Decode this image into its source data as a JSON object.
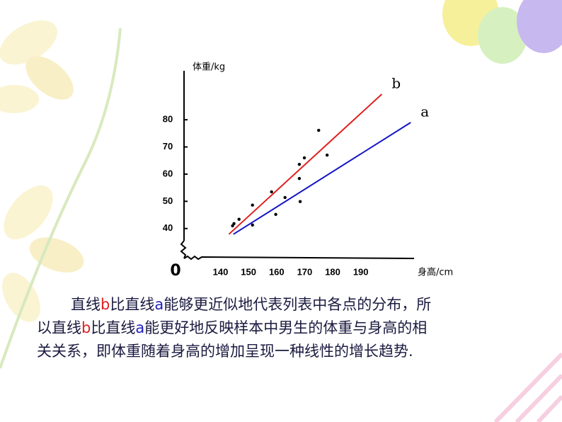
{
  "chart_data": {
    "type": "scatter",
    "y_label": "体重/kg",
    "x_label": "身高/cm",
    "origin_label": "0",
    "xlim": [
      127,
      209
    ],
    "ylim": [
      29,
      98
    ],
    "xticks": [
      140,
      150,
      160,
      170,
      180,
      190
    ],
    "yticks": [
      40,
      50,
      60,
      70,
      80
    ],
    "series": [
      {
        "type": "scatter",
        "color": "#000000",
        "x": [
          144.3,
          144.8,
          146.6,
          151.4,
          151.4,
          158.2,
          159.7,
          163.0,
          168.1,
          168.1,
          168.4,
          169.9,
          175.0,
          178.0
        ],
        "values": [
          41.0,
          41.8,
          43.4,
          48.6,
          41.3,
          53.5,
          45.2,
          51.4,
          63.6,
          58.4,
          49.9,
          66.0,
          76.1,
          67.0
        ]
      },
      {
        "type": "line",
        "name": "b",
        "color": "#e02020",
        "x": [
          143.0,
          197.5
        ],
        "values": [
          37.9,
          89.4
        ]
      },
      {
        "type": "line",
        "name": "a",
        "color": "#1414c8",
        "x": [
          144.6,
          207.8
        ],
        "values": [
          37.9,
          79.0
        ]
      }
    ]
  },
  "caption": {
    "lines": [
      [
        "直线",
        "b",
        "比直线",
        "a",
        "能够更近似地代表列表中各点的分布，所"
      ],
      [
        "以直线",
        "b",
        "比直线",
        "a",
        "能更好地反映样本中男生的体重与身高的相"
      ],
      [
        "关关系，即体重随着身高的增加呈现一种线性的增长趋势."
      ]
    ]
  }
}
